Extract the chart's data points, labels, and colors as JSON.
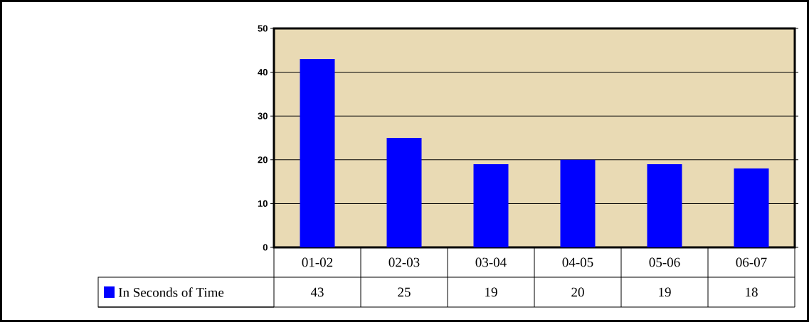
{
  "chart_data": {
    "type": "bar",
    "categories": [
      "01-02",
      "02-03",
      "03-04",
      "04-05",
      "05-06",
      "06-07"
    ],
    "series": [
      {
        "name": "In Seconds of Time",
        "color": "#0000ff",
        "values": [
          43,
          25,
          19,
          20,
          19,
          18
        ]
      }
    ],
    "ylim": [
      0,
      50
    ],
    "yticks": [
      0,
      10,
      20,
      30,
      40,
      50
    ],
    "grid": "y",
    "legend": "bottom",
    "data_labels": true
  }
}
